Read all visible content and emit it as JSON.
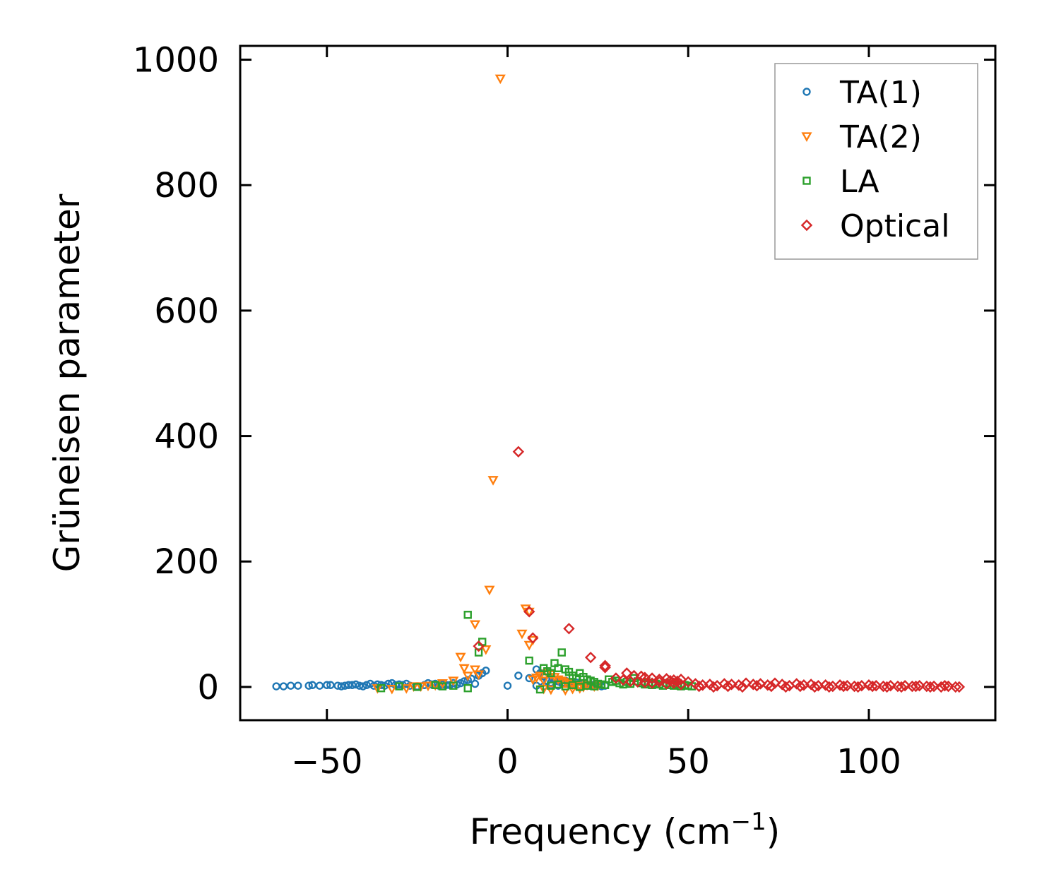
{
  "chart_data": {
    "type": "scatter",
    "xlabel": "Frequency (cm",
    "xlabel_sup": "−1",
    "xlabel_end": ")",
    "ylabel": "Grüneisen parameter",
    "xlim": [
      -74,
      135
    ],
    "ylim": [
      -53,
      1022
    ],
    "xticks": [
      -50,
      0,
      50,
      100
    ],
    "xtick_labels": [
      "−50",
      "0",
      "50",
      "100"
    ],
    "yticks": [
      0,
      200,
      400,
      600,
      800,
      1000
    ],
    "ytick_labels": [
      "0",
      "200",
      "400",
      "600",
      "800",
      "1000"
    ],
    "grid": false,
    "legend_position": "top-right",
    "series": [
      {
        "name": "TA(1)",
        "marker": "circle",
        "color": "#1f77b4",
        "points": [
          [
            -64,
            1
          ],
          [
            -62,
            1
          ],
          [
            -60,
            2
          ],
          [
            -58,
            2
          ],
          [
            -55,
            2
          ],
          [
            -54,
            3
          ],
          [
            -52,
            2
          ],
          [
            -50,
            3
          ],
          [
            -49,
            3
          ],
          [
            -47,
            2
          ],
          [
            -46,
            1
          ],
          [
            -45,
            2
          ],
          [
            -44,
            3
          ],
          [
            -43,
            3
          ],
          [
            -42,
            4
          ],
          [
            -41,
            2
          ],
          [
            -40,
            1
          ],
          [
            -39,
            3
          ],
          [
            -38,
            5
          ],
          [
            -37,
            2
          ],
          [
            -36,
            4
          ],
          [
            -35,
            3
          ],
          [
            -34,
            2
          ],
          [
            -33,
            5
          ],
          [
            -32,
            6
          ],
          [
            -31,
            3
          ],
          [
            -30,
            4
          ],
          [
            -29,
            3
          ],
          [
            -28,
            5
          ],
          [
            -27,
            2
          ],
          [
            -25,
            1
          ],
          [
            -23,
            3
          ],
          [
            -22,
            6
          ],
          [
            -21,
            4
          ],
          [
            -20,
            5
          ],
          [
            -19,
            2
          ],
          [
            -18,
            4
          ],
          [
            -17,
            3
          ],
          [
            -16,
            3
          ],
          [
            -15,
            6
          ],
          [
            -14,
            4
          ],
          [
            -13,
            6
          ],
          [
            -12,
            9
          ],
          [
            -11,
            11
          ],
          [
            -10,
            13
          ],
          [
            -9,
            5
          ],
          [
            -8,
            18
          ],
          [
            -7,
            22
          ],
          [
            -6,
            26
          ],
          [
            0,
            2
          ],
          [
            3,
            18
          ],
          [
            6,
            14
          ],
          [
            8,
            28
          ],
          [
            9,
            22
          ],
          [
            10,
            17
          ],
          [
            11,
            10
          ],
          [
            12,
            7
          ],
          [
            13,
            12
          ],
          [
            14,
            9
          ],
          [
            15,
            6
          ],
          [
            16,
            10
          ],
          [
            17,
            5
          ],
          [
            18,
            8
          ],
          [
            19,
            7
          ],
          [
            20,
            3
          ],
          [
            21,
            6
          ],
          [
            22,
            4
          ],
          [
            23,
            2
          ],
          [
            24,
            4
          ],
          [
            25,
            3
          ],
          [
            26,
            1
          ],
          [
            27,
            2
          ],
          [
            8,
            2
          ],
          [
            10,
            1
          ],
          [
            12,
            3
          ],
          [
            14,
            2
          ]
        ]
      },
      {
        "name": "TA(2)",
        "marker": "triangle-down",
        "color": "#ff7f0e",
        "points": [
          [
            -2,
            970
          ],
          [
            -4,
            330
          ],
          [
            -5,
            155
          ],
          [
            5,
            125
          ],
          [
            6,
            120
          ],
          [
            -9,
            100
          ],
          [
            -6,
            60
          ],
          [
            4,
            85
          ],
          [
            6,
            67
          ],
          [
            7,
            75
          ],
          [
            -13,
            48
          ],
          [
            -12,
            30
          ],
          [
            -9,
            28
          ],
          [
            -8,
            20
          ],
          [
            -11,
            18
          ],
          [
            -15,
            10
          ],
          [
            -18,
            6
          ],
          [
            -20,
            3
          ],
          [
            -22,
            2
          ],
          [
            -24,
            1
          ],
          [
            -26,
            1
          ],
          [
            -28,
            -2
          ],
          [
            -32,
            -3
          ],
          [
            -36,
            -2
          ],
          [
            7,
            12
          ],
          [
            8,
            15
          ],
          [
            9,
            18
          ],
          [
            10,
            10
          ],
          [
            11,
            22
          ],
          [
            12,
            20
          ],
          [
            13,
            16
          ],
          [
            14,
            12
          ],
          [
            15,
            10
          ],
          [
            16,
            8
          ],
          [
            17,
            6
          ],
          [
            18,
            4
          ],
          [
            19,
            2
          ],
          [
            20,
            1
          ],
          [
            21,
            0
          ],
          [
            22,
            3
          ],
          [
            24,
            1
          ],
          [
            25,
            2
          ],
          [
            16,
            -5
          ],
          [
            18,
            -3
          ],
          [
            20,
            -2
          ],
          [
            10,
            -3
          ],
          [
            12,
            -4
          ]
        ]
      },
      {
        "name": "LA",
        "marker": "square",
        "color": "#2ca02c",
        "points": [
          [
            -11,
            115
          ],
          [
            -7,
            72
          ],
          [
            -8,
            55
          ],
          [
            -11,
            -2
          ],
          [
            -15,
            2
          ],
          [
            -18,
            1
          ],
          [
            -20,
            3
          ],
          [
            -25,
            0
          ],
          [
            -30,
            1
          ],
          [
            -35,
            -2
          ],
          [
            6,
            42
          ],
          [
            9,
            -4
          ],
          [
            10,
            30
          ],
          [
            11,
            25
          ],
          [
            12,
            22
          ],
          [
            13,
            38
          ],
          [
            14,
            30
          ],
          [
            15,
            55
          ],
          [
            16,
            28
          ],
          [
            17,
            24
          ],
          [
            18,
            18
          ],
          [
            19,
            14
          ],
          [
            20,
            22
          ],
          [
            21,
            16
          ],
          [
            22,
            12
          ],
          [
            23,
            10
          ],
          [
            24,
            8
          ],
          [
            25,
            5
          ],
          [
            26,
            4
          ],
          [
            27,
            3
          ],
          [
            28,
            12
          ],
          [
            29,
            8
          ],
          [
            30,
            10
          ],
          [
            31,
            6
          ],
          [
            32,
            4
          ],
          [
            33,
            8
          ],
          [
            34,
            5
          ],
          [
            35,
            14
          ],
          [
            36,
            9
          ],
          [
            37,
            6
          ],
          [
            38,
            4
          ],
          [
            39,
            7
          ],
          [
            40,
            3
          ],
          [
            41,
            5
          ],
          [
            42,
            4
          ],
          [
            43,
            2
          ],
          [
            44,
            6
          ],
          [
            45,
            3
          ],
          [
            46,
            2
          ],
          [
            47,
            4
          ],
          [
            48,
            1
          ],
          [
            49,
            3
          ],
          [
            50,
            2
          ],
          [
            51,
            1
          ],
          [
            12,
            2
          ],
          [
            14,
            4
          ],
          [
            16,
            1
          ],
          [
            18,
            3
          ],
          [
            20,
            0
          ],
          [
            22,
            2
          ],
          [
            24,
            1
          ]
        ]
      },
      {
        "name": "Optical",
        "marker": "diamond",
        "color": "#d62728",
        "points": [
          [
            3,
            375
          ],
          [
            6,
            120
          ],
          [
            7,
            78
          ],
          [
            17,
            93
          ],
          [
            -8,
            65
          ],
          [
            23,
            47
          ],
          [
            27,
            34
          ],
          [
            27,
            31
          ],
          [
            33,
            22
          ],
          [
            35,
            18
          ],
          [
            37,
            17
          ],
          [
            38,
            15
          ],
          [
            40,
            14
          ],
          [
            42,
            12
          ],
          [
            44,
            13
          ],
          [
            45,
            10
          ],
          [
            46,
            11
          ],
          [
            47,
            9
          ],
          [
            48,
            12
          ],
          [
            50,
            8
          ],
          [
            30,
            14
          ],
          [
            32,
            11
          ],
          [
            34,
            9
          ],
          [
            36,
            8
          ],
          [
            38,
            7
          ],
          [
            40,
            6
          ],
          [
            42,
            8
          ],
          [
            44,
            5
          ],
          [
            46,
            6
          ],
          [
            48,
            4
          ],
          [
            52,
            5
          ],
          [
            54,
            3
          ],
          [
            56,
            4
          ],
          [
            58,
            2
          ],
          [
            60,
            5
          ],
          [
            62,
            4
          ],
          [
            64,
            3
          ],
          [
            66,
            6
          ],
          [
            68,
            4
          ],
          [
            70,
            5
          ],
          [
            72,
            3
          ],
          [
            74,
            6
          ],
          [
            76,
            4
          ],
          [
            78,
            2
          ],
          [
            80,
            5
          ],
          [
            82,
            3
          ],
          [
            84,
            4
          ],
          [
            86,
            2
          ],
          [
            88,
            3
          ],
          [
            90,
            1
          ],
          [
            92,
            3
          ],
          [
            94,
            2
          ],
          [
            96,
            1
          ],
          [
            98,
            2
          ],
          [
            100,
            3
          ],
          [
            102,
            2
          ],
          [
            104,
            1
          ],
          [
            106,
            2
          ],
          [
            108,
            1
          ],
          [
            110,
            2
          ],
          [
            112,
            1
          ],
          [
            114,
            2
          ],
          [
            116,
            1
          ],
          [
            118,
            1
          ],
          [
            120,
            0
          ],
          [
            122,
            1
          ],
          [
            124,
            0
          ],
          [
            125,
            0
          ],
          [
            53,
            1
          ],
          [
            57,
            0
          ],
          [
            61,
            1
          ],
          [
            65,
            0
          ],
          [
            69,
            2
          ],
          [
            73,
            1
          ],
          [
            77,
            0
          ],
          [
            81,
            1
          ],
          [
            85,
            0
          ],
          [
            89,
            0
          ],
          [
            93,
            1
          ],
          [
            97,
            0
          ],
          [
            101,
            1
          ],
          [
            105,
            0
          ],
          [
            109,
            0
          ],
          [
            113,
            1
          ],
          [
            117,
            0
          ],
          [
            121,
            2
          ]
        ]
      }
    ]
  }
}
